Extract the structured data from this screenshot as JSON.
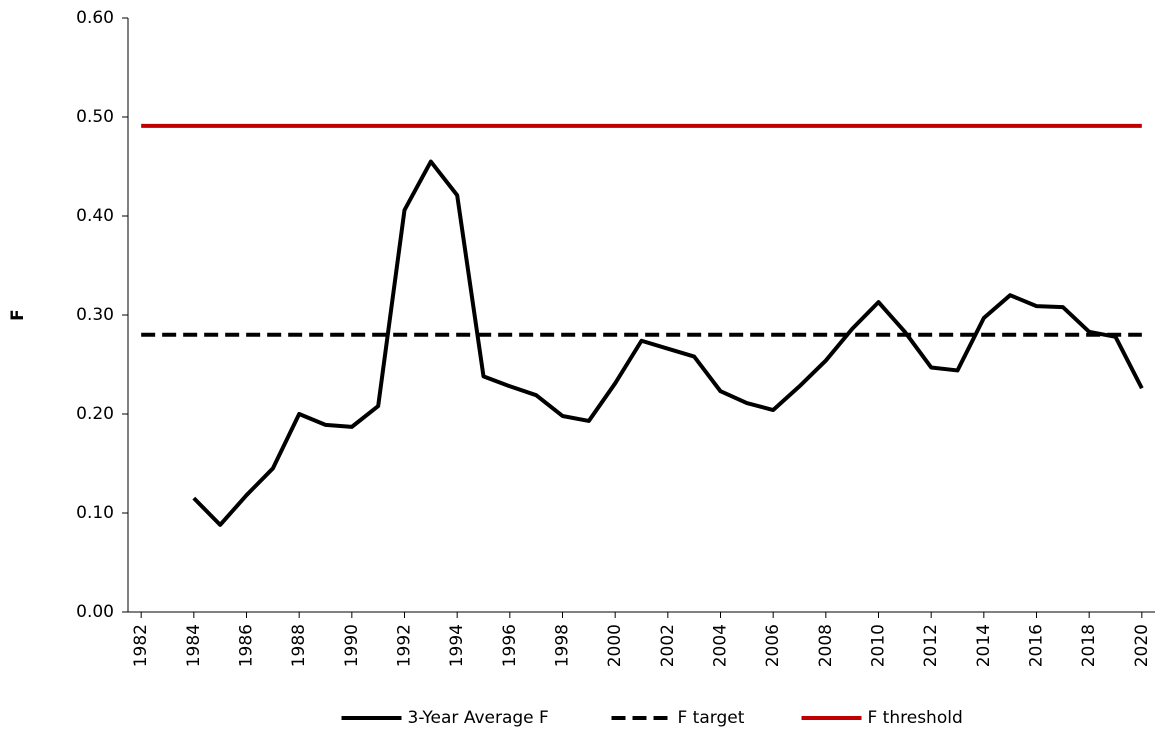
{
  "chart_data": {
    "type": "line",
    "y_label": "F",
    "x": [
      1982,
      1983,
      1984,
      1985,
      1986,
      1987,
      1988,
      1989,
      1990,
      1991,
      1992,
      1993,
      1994,
      1995,
      1996,
      1997,
      1998,
      1999,
      2000,
      2001,
      2002,
      2003,
      2004,
      2005,
      2006,
      2007,
      2008,
      2009,
      2010,
      2011,
      2012,
      2013,
      2014,
      2015,
      2016,
      2017,
      2018,
      2019,
      2020
    ],
    "xlim": [
      1981.5,
      2020.5
    ],
    "xticks": [
      1982,
      1984,
      1986,
      1988,
      1990,
      1992,
      1994,
      1996,
      1998,
      2000,
      2002,
      2004,
      2006,
      2008,
      2010,
      2012,
      2014,
      2016,
      2018,
      2020
    ],
    "ylim": [
      0,
      0.6
    ],
    "yticks": [
      {
        "value": 0,
        "label": "0.00"
      },
      {
        "value": 0.1,
        "label": "0.10"
      },
      {
        "value": 0.2,
        "label": "0.20"
      },
      {
        "value": 0.3,
        "label": "0.30"
      },
      {
        "value": 0.4,
        "label": "0.40"
      },
      {
        "value": 0.5,
        "label": "0.50"
      },
      {
        "value": 0.6,
        "label": "0.60"
      }
    ],
    "legend": "bottom",
    "series": [
      {
        "name": "3-Year Average F",
        "color": "#000000",
        "dash": false,
        "values": [
          null,
          null,
          0.115,
          0.088,
          0.118,
          0.145,
          0.2,
          0.189,
          0.187,
          0.208,
          0.406,
          0.455,
          0.421,
          0.238,
          0.228,
          0.219,
          0.198,
          0.193,
          0.231,
          0.274,
          0.266,
          0.258,
          0.223,
          0.211,
          0.204,
          0.228,
          0.254,
          0.286,
          0.313,
          0.283,
          0.247,
          0.244,
          0.297,
          0.32,
          0.309,
          0.308,
          0.283,
          0.278,
          0.226
        ]
      },
      {
        "name": "F target",
        "color": "#000000",
        "dash": true,
        "values": [
          0.28,
          0.28,
          0.28,
          0.28,
          0.28,
          0.28,
          0.28,
          0.28,
          0.28,
          0.28,
          0.28,
          0.28,
          0.28,
          0.28,
          0.28,
          0.28,
          0.28,
          0.28,
          0.28,
          0.28,
          0.28,
          0.28,
          0.28,
          0.28,
          0.28,
          0.28,
          0.28,
          0.28,
          0.28,
          0.28,
          0.28,
          0.28,
          0.28,
          0.28,
          0.28,
          0.28,
          0.28,
          0.28,
          0.28
        ]
      },
      {
        "name": "F threshold",
        "color": "#c00000",
        "dash": false,
        "values": [
          0.491,
          0.491,
          0.491,
          0.491,
          0.491,
          0.491,
          0.491,
          0.491,
          0.491,
          0.491,
          0.491,
          0.491,
          0.491,
          0.491,
          0.491,
          0.491,
          0.491,
          0.491,
          0.491,
          0.491,
          0.491,
          0.491,
          0.491,
          0.491,
          0.491,
          0.491,
          0.491,
          0.491,
          0.491,
          0.491,
          0.491,
          0.491,
          0.491,
          0.491,
          0.491,
          0.491,
          0.491,
          0.491,
          0.491
        ]
      }
    ]
  }
}
